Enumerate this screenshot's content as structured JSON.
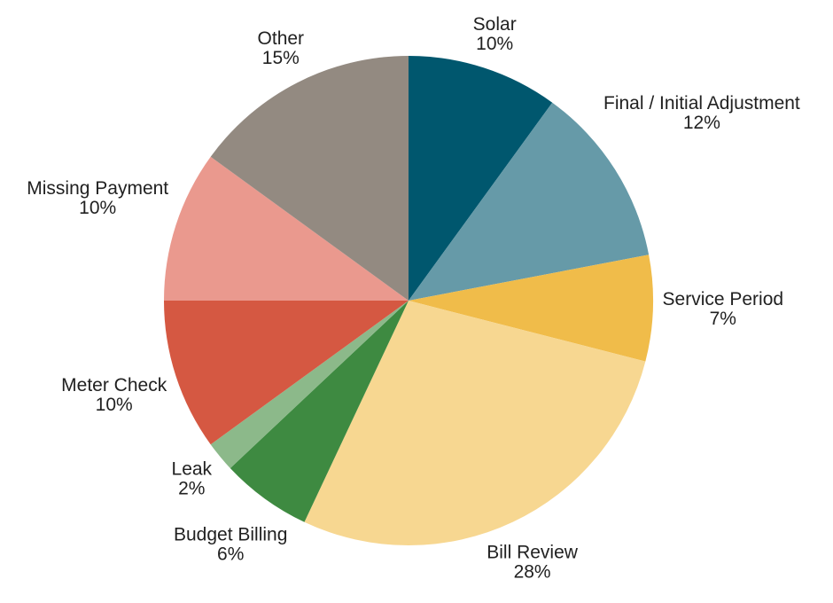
{
  "chart_data": {
    "type": "pie",
    "title": "",
    "start_angle_deg": 0,
    "direction": "clockwise",
    "labels_position": "outside",
    "background_color": "#ffffff",
    "text_color": "#212121",
    "slices": [
      {
        "label": "Solar",
        "value": 10,
        "display": "10%",
        "color": "#00576e"
      },
      {
        "label": "Final / Initial Adjustment",
        "value": 12,
        "display": "12%",
        "color": "#669aa8"
      },
      {
        "label": "Service Period",
        "value": 7,
        "display": "7%",
        "color": "#f0bc4a"
      },
      {
        "label": "Bill Review",
        "value": 28,
        "display": "28%",
        "color": "#f7d791"
      },
      {
        "label": "Budget Billing",
        "value": 6,
        "display": "6%",
        "color": "#3e8a41"
      },
      {
        "label": "Leak",
        "value": 2,
        "display": "2%",
        "color": "#8cb98a"
      },
      {
        "label": "Meter Check",
        "value": 10,
        "display": "10%",
        "color": "#d55842"
      },
      {
        "label": "Missing Payment",
        "value": 10,
        "display": "10%",
        "color": "#ea998e"
      },
      {
        "label": "Other",
        "value": 15,
        "display": "15%",
        "color": "#938a81"
      }
    ]
  }
}
